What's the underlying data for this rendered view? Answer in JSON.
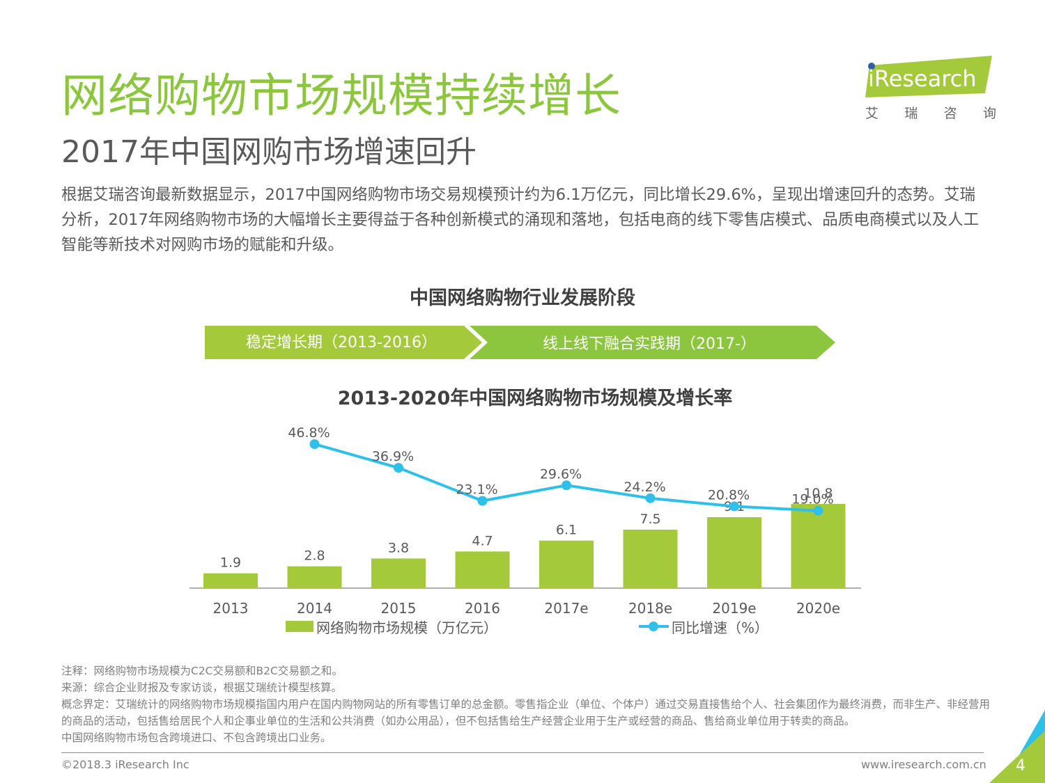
{
  "header": {
    "title": "网络购物市场规模持续增长",
    "subtitle": "2017年中国网购市场增速回升"
  },
  "logo": {
    "brand": "iResearch",
    "brand_cn_chars": [
      "艾",
      "瑞",
      "咨",
      "询"
    ]
  },
  "body": {
    "paragraph": "根据艾瑞咨询最新数据显示，2017中国网络购物市场交易规模预计约为6.1万亿元，同比增长29.6%，呈现出增速回升的态势。艾瑞分析，2017年网络购物市场的大幅增长主要得益于各种创新模式的涌现和落地，包括电商的线下零售店模式、品质电商模式以及人工智能等新技术对网购市场的赋能和升级。"
  },
  "stages": {
    "title": "中国网络购物行业发展阶段",
    "items": [
      {
        "label": "稳定增长期（2013-2016）"
      },
      {
        "label": "线上线下融合实践期（2017-）"
      }
    ]
  },
  "chart_data": {
    "type": "bar",
    "title": "2013-2020年中国网络购物市场规模及增长率",
    "categories": [
      "2013",
      "2014",
      "2015",
      "2016",
      "2017e",
      "2018e",
      "2019e",
      "2020e"
    ],
    "series": [
      {
        "name": "网络购物市场规模（万亿元）",
        "type": "bar",
        "color": "#a4c93b",
        "values": [
          1.9,
          2.8,
          3.8,
          4.7,
          6.1,
          7.5,
          9.1,
          10.8
        ],
        "labels": [
          "1.9",
          "2.8",
          "3.8",
          "4.7",
          "6.1",
          "7.5",
          "9.1",
          "10.8"
        ]
      },
      {
        "name": "同比增速（%）",
        "type": "line",
        "color": "#2ec0e8",
        "values": [
          null,
          46.8,
          36.9,
          23.1,
          29.6,
          24.2,
          20.8,
          19.0
        ],
        "labels": [
          null,
          "46.8%",
          "36.9%",
          "23.1%",
          "29.6%",
          "24.2%",
          "20.8%",
          "19.0%"
        ]
      }
    ],
    "legend": "bottom"
  },
  "notes": {
    "note": "注释：网络购物市场规模为C2C交易额和B2C交易额之和。",
    "source": "来源：综合企业财报及专家访谈，根据艾瑞统计模型核算。",
    "concept": "概念界定：艾瑞统计的网络购物市场规模指国内用户在国内购物网站的所有零售订单的总金额。零售指企业（单位、个体户）通过交易直接售给个人、社会集团作为最终消费，而非生产、非经营用的商品的活动，包括售给居民个人和企事业单位的生活和公共消费（如办公用品），但不包括售给生产经营企业用于生产或经营的商品、售给商业单位用于转卖的商品。",
    "cross_border": "中国网络购物市场包含跨境进口、不包含跨境出口业务。"
  },
  "footer": {
    "copyright": "©2018.3 iResearch Inc",
    "website": "www.iresearch.com.cn",
    "page_number": "4"
  },
  "colors": {
    "title_green": "#8cc63f",
    "stage1": "#a4c93b",
    "stage2": "#8cc63f",
    "bar": "#a4c93b",
    "line": "#2ec0e8"
  }
}
